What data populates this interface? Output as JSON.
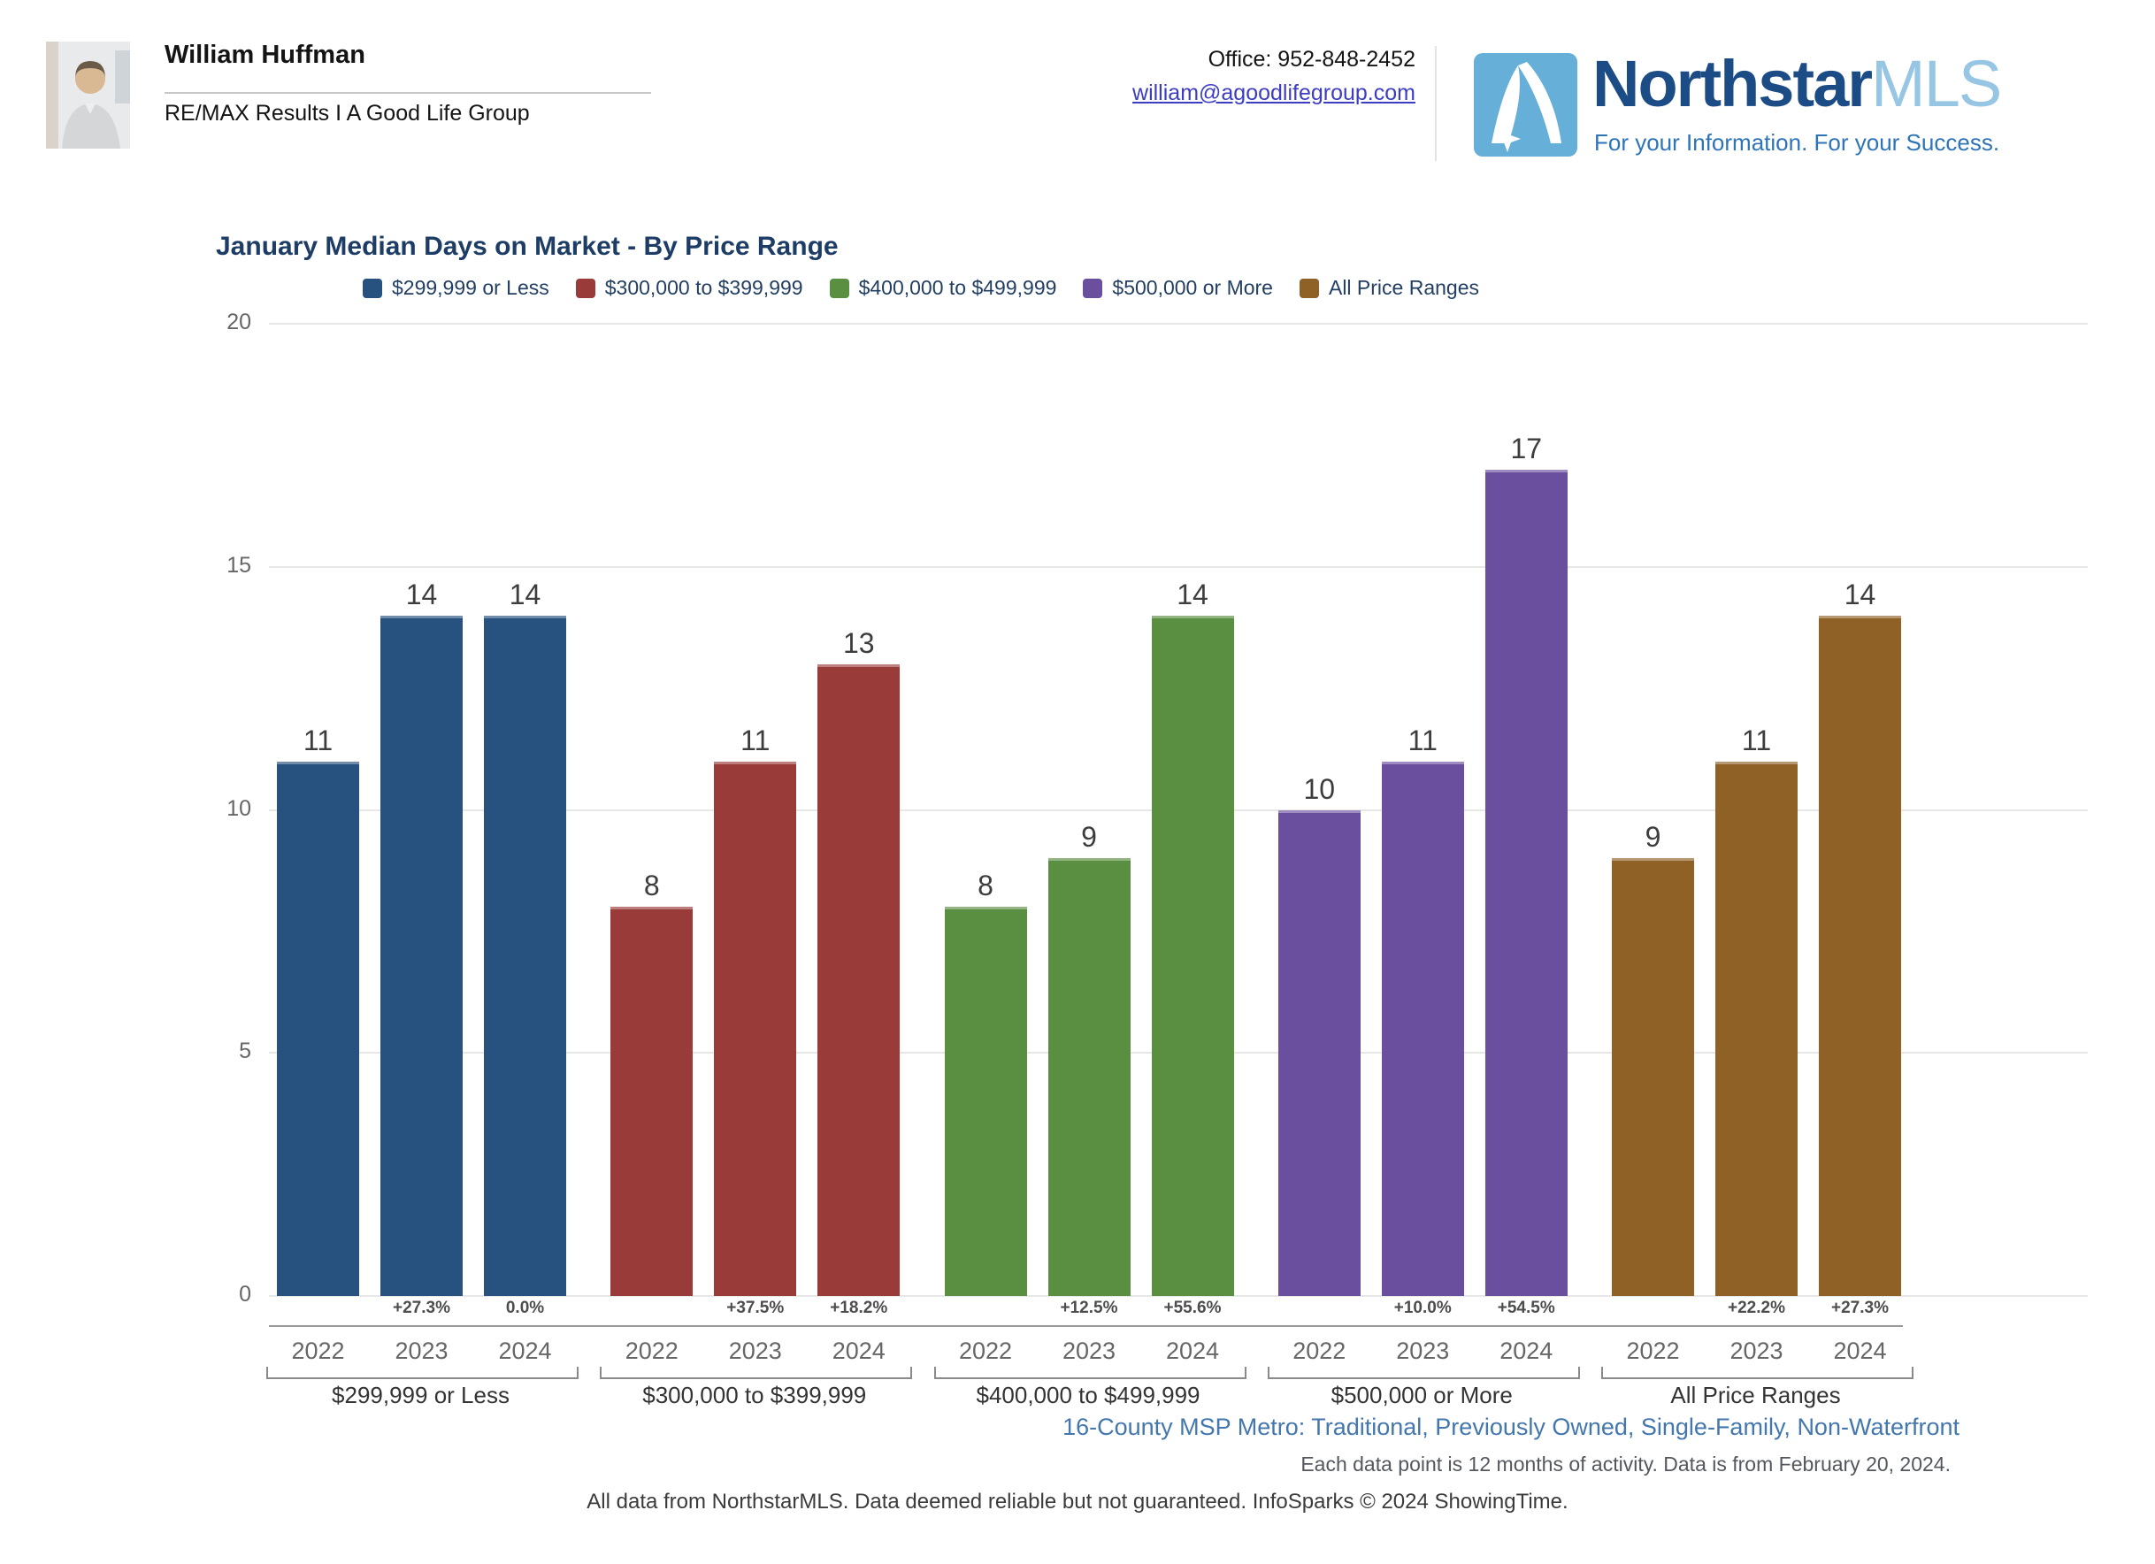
{
  "header": {
    "agent_name": "William Huffman",
    "agency": "RE/MAX Results I A Good Life Group",
    "office_label": "Office: 952-848-2452",
    "email": "william@agoodlifegroup.com",
    "logo": {
      "brand": "Northstar",
      "brand_suffix": "MLS",
      "tagline": "For your Information. For your Success.",
      "icon_name": "northstar-n-swoosh-star",
      "icon_bg_color": "#66afd8",
      "brand_color": "#1c4c86",
      "suffix_color": "#96c6e4"
    }
  },
  "chart_data": {
    "type": "bar",
    "title": "January Median Days on Market - By Price Range",
    "ylabel": "",
    "xlabel": "",
    "ylim": [
      0,
      20
    ],
    "yticks": [
      0,
      5,
      10,
      15,
      20
    ],
    "grid": "horizontal",
    "legend_position": "top",
    "years": [
      "2022",
      "2023",
      "2024"
    ],
    "groups": [
      {
        "label": "$299,999 or Less",
        "color": "#27517e",
        "values": [
          11,
          14,
          14
        ],
        "pct_change": [
          null,
          "+27.3%",
          "0.0%"
        ]
      },
      {
        "label": "$300,000 to $399,999",
        "color": "#993b39",
        "values": [
          8,
          11,
          13
        ],
        "pct_change": [
          null,
          "+37.5%",
          "+18.2%"
        ]
      },
      {
        "label": "$400,000 to $499,999",
        "color": "#5a8e41",
        "values": [
          8,
          9,
          14
        ],
        "pct_change": [
          null,
          "+12.5%",
          "+55.6%"
        ]
      },
      {
        "label": "$500,000 or More",
        "color": "#6a4f9f",
        "values": [
          10,
          11,
          17
        ],
        "pct_change": [
          null,
          "+10.0%",
          "+54.5%"
        ]
      },
      {
        "label": "All Price Ranges",
        "color": "#8f6127",
        "values": [
          9,
          11,
          14
        ],
        "pct_change": [
          null,
          "+22.2%",
          "+27.3%"
        ]
      }
    ]
  },
  "footer": {
    "region_line": "16-County MSP Metro: Traditional, Previously Owned, Single-Family, Non-Waterfront",
    "data_note": "Each data point is 12 months of activity. Data is from February 20, 2024.",
    "disclaimer": "All data from NorthstarMLS. Data deemed reliable but not guaranteed. InfoSparks © 2024 ShowingTime."
  }
}
